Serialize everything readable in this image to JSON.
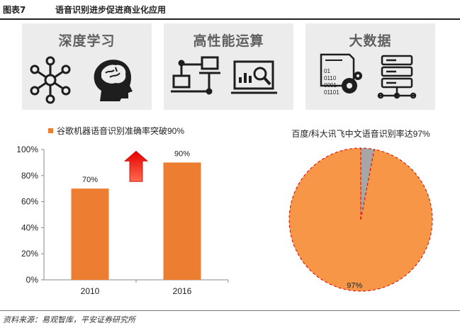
{
  "header": {
    "figure_label": "图表7",
    "title": "语音识别进步促进商业化应用"
  },
  "tiles": [
    {
      "title": "深度学习",
      "icons": [
        "network-icon",
        "brain-head-icon"
      ]
    },
    {
      "title": "高性能运算",
      "icons": [
        "connected-computers-icon",
        "monitor-analytics-icon"
      ]
    },
    {
      "title": "大数据",
      "icons": [
        "binary-data-gear-icon",
        "server-database-icon"
      ]
    }
  ],
  "chart_data": [
    {
      "type": "bar",
      "legend": "谷歌机器语音识别准确率突破90%",
      "categories": [
        "2010",
        "2016"
      ],
      "values": [
        70,
        90
      ],
      "data_labels": [
        "70%",
        "90%"
      ],
      "ylim": [
        0,
        100
      ],
      "yticks": [
        "0%",
        "20%",
        "40%",
        "60%",
        "80%",
        "100%"
      ],
      "color": "#ed7d31",
      "arrow_color": "#e60000"
    },
    {
      "type": "pie",
      "title": "百度/科大讯飞中文语音识别率达97%",
      "slices": [
        {
          "value": 97,
          "label": "97%",
          "color": "#f79646"
        },
        {
          "value": 3,
          "label": "",
          "color": "#a6a6a6"
        }
      ],
      "border_color": "#e00000"
    }
  ],
  "source": "资料来源：易观智库，平安证券研究所"
}
